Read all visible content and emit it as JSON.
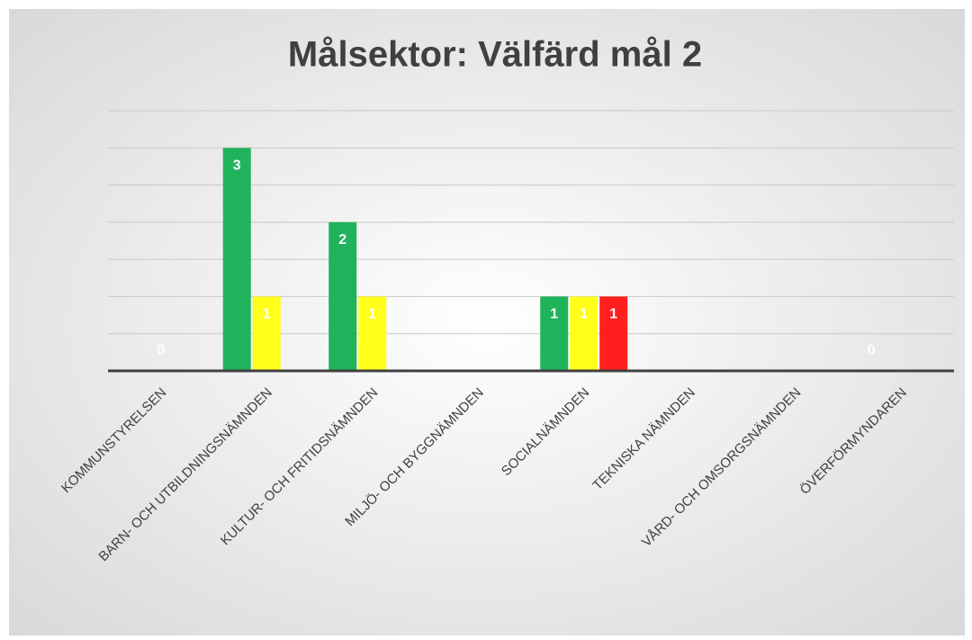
{
  "chart_data": {
    "type": "bar",
    "title": "Målsektor: Välfärd mål 2",
    "categories": [
      "KOMMUNSTYRELSEN",
      "BARN- OCH UTBILDNINGSNÄMNDEN",
      "KULTUR- OCH FRITIDSNÄMNDEN",
      "MILJÖ- OCH BYGGNÄMNDEN",
      "SOCIALNÄMNDEN",
      "TEKNISKA NÄMNDEN",
      "VÅRD- OCH OMSORGSNÄMNDEN",
      "ÖVERFÖRMYNDAREN"
    ],
    "series": [
      {
        "color": "#21b35b",
        "values": [
          null,
          3,
          2,
          null,
          1,
          null,
          null,
          0
        ]
      },
      {
        "color": "#ffff1a",
        "values": [
          0,
          1,
          1,
          null,
          1,
          null,
          null,
          null
        ]
      },
      {
        "color": "#ff1f1f",
        "values": [
          null,
          null,
          null,
          null,
          1,
          null,
          null,
          null
        ]
      }
    ],
    "ylim": [
      0,
      3.5
    ],
    "yticks": [
      0,
      0.5,
      1,
      1.5,
      2,
      2.5,
      3,
      3.5
    ],
    "grid": true
  }
}
